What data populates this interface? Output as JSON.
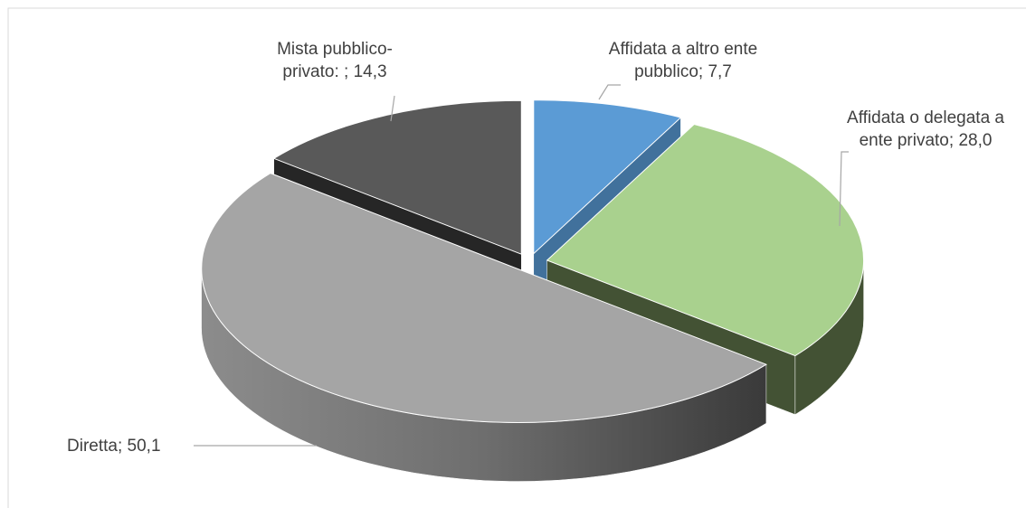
{
  "chart_data": {
    "type": "pie3d",
    "categories": [
      "Affidata a altro ente pubblico",
      "Affidata o delegata a ente privato",
      "Diretta",
      "Mista pubblico-privato: "
    ],
    "values": [
      7.7,
      28.0,
      50.1,
      14.3
    ],
    "value_labels": [
      "7,7",
      "28,0",
      "50,1",
      "14,3"
    ],
    "label_separator": "; ",
    "colors": [
      "#5b9bd5",
      "#a9d18e",
      "#a5a5a5",
      "#595959"
    ],
    "side_colors": [
      "#41719c",
      "#435234",
      "url(#graySide)",
      "#262626"
    ]
  }
}
